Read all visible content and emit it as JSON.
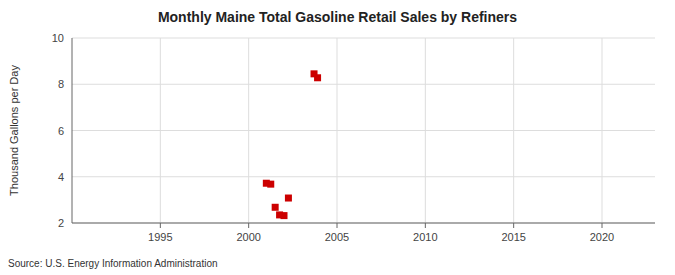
{
  "chart_data": {
    "type": "scatter",
    "title": "Monthly Maine Total Gasoline Retail Sales by Refiners",
    "ylabel": "Thousand Gallons per Day",
    "source": "Source: U.S. Energy Information Administration",
    "x": [
      2001.0,
      2001.25,
      2001.5,
      2001.75,
      2002.0,
      2002.25,
      2003.7,
      2003.9
    ],
    "values": [
      3.72,
      3.68,
      2.68,
      2.35,
      2.32,
      3.08,
      8.45,
      8.28
    ],
    "color": "#cc0000",
    "marker": "square",
    "xlim": [
      1990,
      2023
    ],
    "ylim": [
      2,
      10
    ],
    "xticks": [
      1995,
      2000,
      2005,
      2010,
      2015,
      2020
    ],
    "yticks": [
      2,
      4,
      6,
      8,
      10
    ],
    "grid": true
  }
}
